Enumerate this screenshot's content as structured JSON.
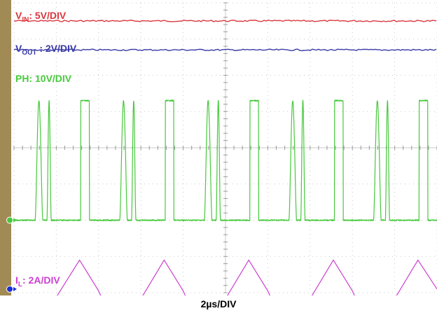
{
  "chart_data": {
    "type": "line",
    "xlabel": "2µs/DIV",
    "grid": true,
    "divisions": {
      "x": 10,
      "y": 8
    },
    "series": [
      {
        "name": "VIN",
        "label_main": "V",
        "label_sub": "IN",
        "label_rest": ": 5V/DIV",
        "color": "#d9383f",
        "kind": "flat",
        "level_div": 0.5
      },
      {
        "name": "VOUT",
        "label_main": "V",
        "label_sub": "OUT",
        "label_rest": " : 2V/DIV",
        "color": "#3a3aa6",
        "kind": "flat",
        "level_div": 1.3
      },
      {
        "name": "PH",
        "label_main": "PH: 10V/DIV",
        "label_sub": "",
        "label_rest": "",
        "color": "#47c93c",
        "kind": "pulse",
        "low_div": 6.0,
        "high_div": 2.7,
        "cycles": [
          {
            "pulses": [
              [
                0.5,
                0.68
              ],
              [
                0.78,
                0.88
              ]
            ],
            "flat": [
              1.58,
              1.78
            ]
          },
          {
            "pulses": [
              [
                2.5,
                2.68
              ],
              [
                2.78,
                2.88
              ]
            ],
            "flat": [
              3.58,
              3.78
            ]
          },
          {
            "pulses": [
              [
                4.5,
                4.68
              ],
              [
                4.78,
                4.88
              ]
            ],
            "flat": [
              5.58,
              5.78
            ]
          },
          {
            "pulses": [
              [
                6.5,
                6.68
              ],
              [
                6.78,
                6.88
              ]
            ],
            "flat": [
              7.58,
              7.78
            ]
          },
          {
            "pulses": [
              [
                8.5,
                8.68
              ],
              [
                8.78,
                8.88
              ]
            ],
            "flat": [
              9.58,
              9.78
            ]
          }
        ]
      },
      {
        "name": "IL",
        "label_main": "I",
        "label_sub": "L",
        "label_rest": ": 2A/DIV",
        "color": "#cc3fd0",
        "kind": "triangle",
        "points": [
          [
            0.0,
            8.1
          ],
          [
            0.25,
            8.5
          ],
          [
            0.45,
            8.9
          ],
          [
            0.6,
            8.45
          ],
          [
            0.72,
            8.95
          ],
          [
            0.85,
            8.4
          ],
          [
            1.55,
            7.1
          ],
          [
            2.0,
            7.95
          ],
          [
            2.35,
            8.9
          ],
          [
            2.55,
            8.45
          ],
          [
            2.72,
            8.95
          ],
          [
            2.88,
            8.4
          ],
          [
            3.55,
            7.1
          ],
          [
            4.0,
            7.95
          ],
          [
            4.35,
            8.9
          ],
          [
            4.55,
            8.45
          ],
          [
            4.72,
            8.95
          ],
          [
            4.88,
            8.4
          ],
          [
            5.55,
            7.1
          ],
          [
            6.0,
            7.95
          ],
          [
            6.35,
            8.9
          ],
          [
            6.55,
            8.45
          ],
          [
            6.72,
            8.95
          ],
          [
            6.88,
            8.4
          ],
          [
            7.55,
            7.1
          ],
          [
            8.0,
            7.95
          ],
          [
            8.35,
            8.9
          ],
          [
            8.55,
            8.45
          ],
          [
            8.72,
            8.95
          ],
          [
            8.88,
            8.4
          ],
          [
            9.55,
            7.1
          ],
          [
            10.0,
            7.9
          ]
        ]
      }
    ],
    "ground_markers": [
      {
        "name": "ch3-ground-marker",
        "color": "#47c93c",
        "level_div": 6.0
      },
      {
        "name": "ch2-ground-marker",
        "color": "#1a2fd6",
        "level_div": 7.9
      },
      {
        "name": "ch4-ground-marker",
        "color": "#cc3fd0",
        "level_div": 8.7
      }
    ]
  }
}
